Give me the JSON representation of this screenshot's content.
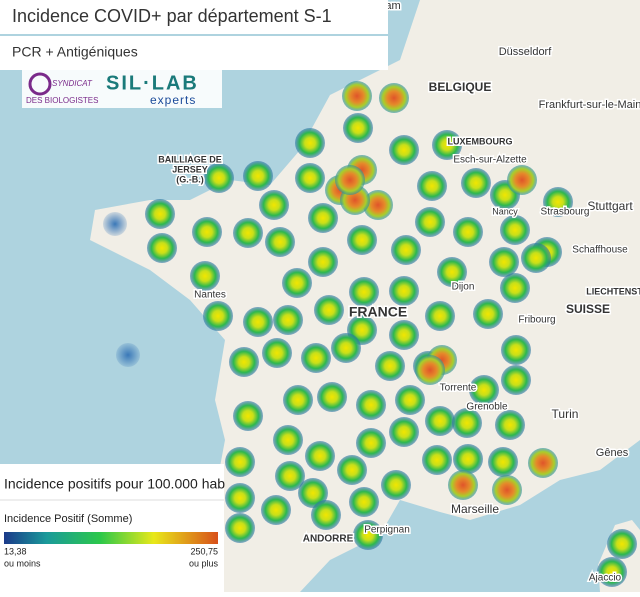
{
  "header": {
    "title": "Incidence COVID+ par département S-1",
    "subtitle": "PCR + Antigéniques"
  },
  "logos": {
    "syndicat": [
      "SYNDICAT",
      "DES BIOLOGISTES"
    ],
    "sil_lab": "SIL·LAB",
    "experts": "experts"
  },
  "legend": {
    "title": "Incidence positifs pour 100.000 hab",
    "field": "Incidence Positif (Somme)",
    "min": {
      "value": "13,38",
      "note": "ou moins"
    },
    "max": {
      "value": "250,75",
      "note": "ou plus"
    }
  },
  "map_labels": [
    "BELGIQUE",
    "Düsseldorf",
    "Frankfurt-sur-le-Main",
    "LUXEMBOURG",
    "Esch-sur-Alzette",
    "Stuttgart",
    "Strasbourg",
    "BAILLIAGE DE",
    "JERSEY",
    "(G.-B.)",
    "Nantes",
    "FRANCE",
    "Dijon",
    "Schaffhouse",
    "LIECHTENSTEIN",
    "Fribourg",
    "SUISSE",
    "Torrente",
    "Grenoble",
    "Turin",
    "Gênes",
    "Marseille",
    "Perpignan",
    "ANDORRE",
    "Ajaccio",
    "Nancy",
    "Rotterdam"
  ]
}
